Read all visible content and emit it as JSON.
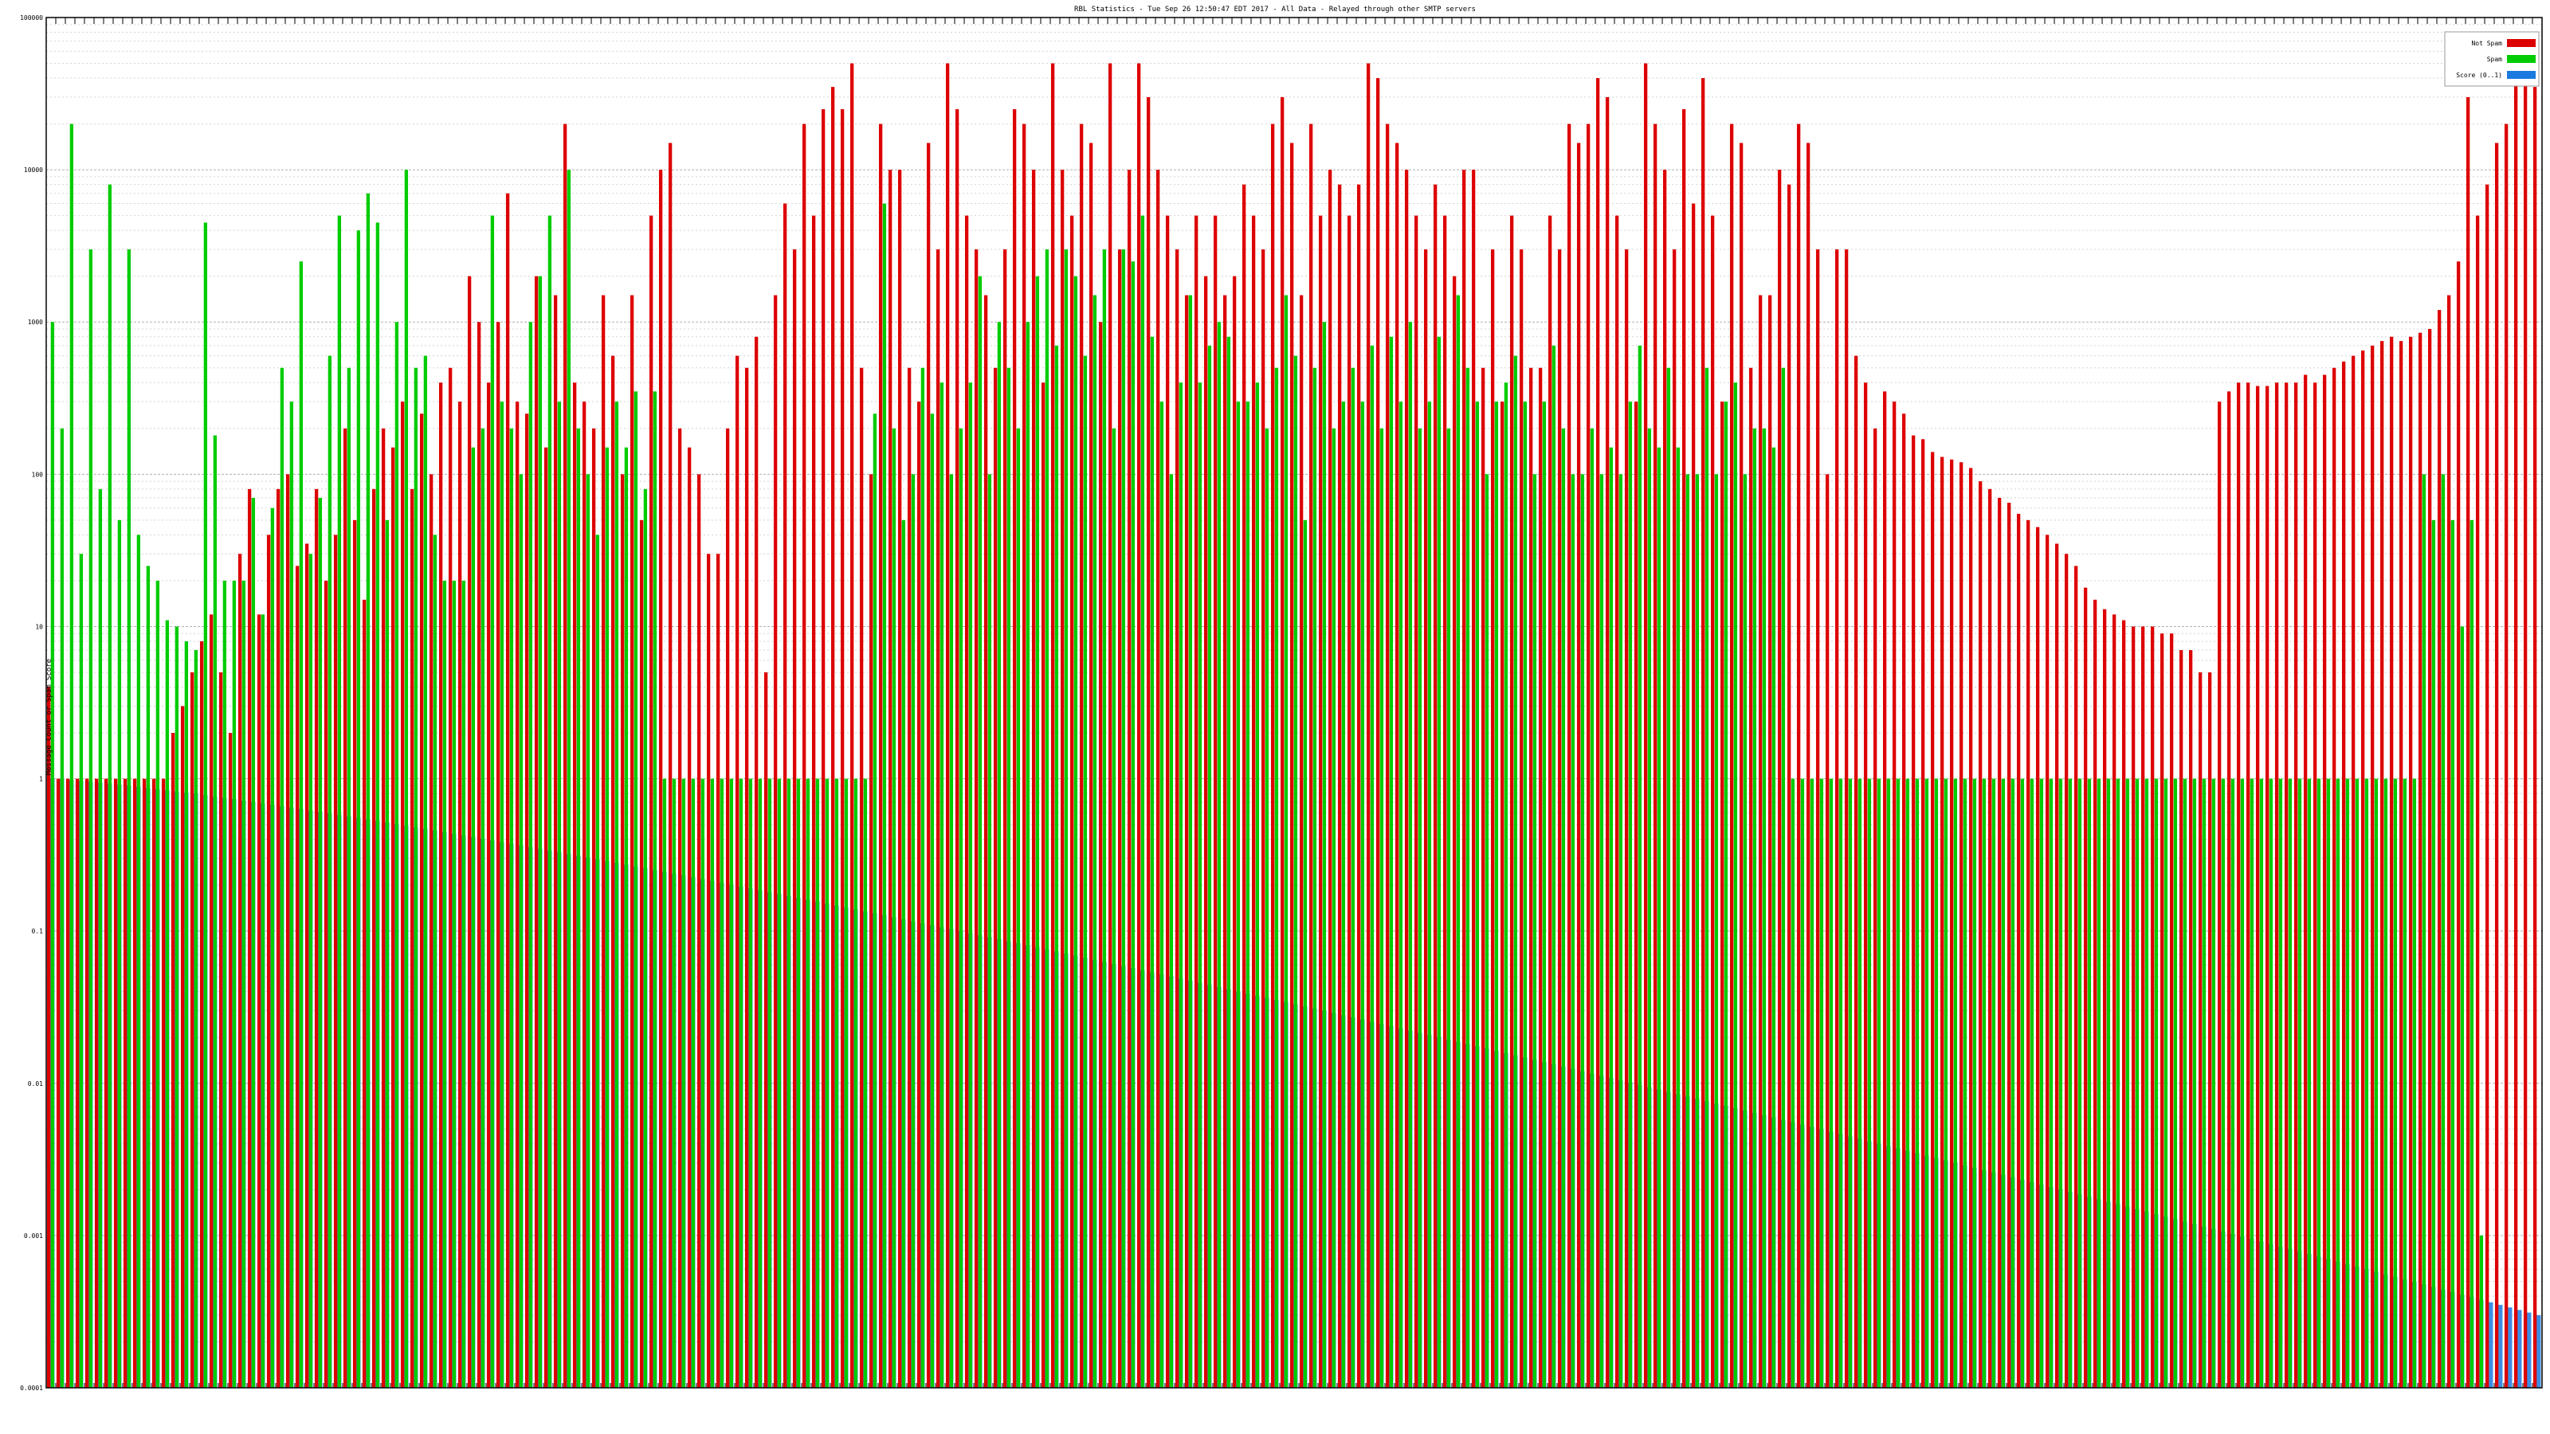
{
  "chart_data": {
    "type": "bar",
    "title": "RBL Statistics - Tue Sep 26 12:50:47 EDT 2017 - All Data - Relayed through other SMTP servers",
    "ylabel": "Message Count or Spam Score",
    "xlabel": "",
    "yscale": "log",
    "ylim": [
      0.0001,
      100000
    ],
    "yticks": [
      "100000",
      "10000",
      "1000",
      "100",
      "10",
      "1",
      "0.1",
      "0.01",
      "0.001",
      "0.0001"
    ],
    "grid": true,
    "legend": {
      "placement": "top-right"
    },
    "series": [
      {
        "name": "Not Spam",
        "color": "#dd0000",
        "values": [
          4,
          1,
          1,
          1,
          1,
          1,
          1,
          1,
          1,
          1,
          1,
          1,
          1,
          2,
          3,
          5,
          8,
          12,
          5,
          2,
          30,
          80,
          12,
          40,
          80,
          100,
          25,
          35,
          80,
          20,
          40,
          200,
          50,
          15,
          80,
          200,
          150,
          300,
          80,
          250,
          100,
          400,
          500,
          300,
          2000,
          1000,
          400,
          1000,
          7000,
          300,
          250,
          2000,
          150,
          1500,
          20000,
          400,
          300,
          200,
          1500,
          600,
          100,
          1500,
          50,
          5000,
          10000,
          15000,
          200,
          150,
          100,
          30,
          30,
          200,
          600,
          500,
          800,
          5,
          1500,
          6000,
          3000,
          20000,
          5000,
          25000,
          35000,
          25000,
          50000,
          500,
          100,
          20000,
          10000,
          10000,
          500,
          300,
          15000,
          3000,
          50000,
          25000,
          5000,
          3000,
          1500,
          500,
          3000,
          25000,
          20000,
          10000,
          400,
          50000,
          10000,
          5000,
          20000,
          15000,
          1000,
          50000,
          3000,
          10000,
          50000,
          30000,
          10000,
          5000,
          3000,
          1500,
          5000,
          2000,
          5000,
          1500,
          2000,
          8000,
          5000,
          3000,
          20000,
          30000,
          15000,
          1500,
          20000,
          5000,
          10000,
          8000,
          5000,
          8000,
          50000,
          40000,
          20000,
          15000,
          10000,
          5000,
          3000,
          8000,
          5000,
          2000,
          10000,
          10000,
          500,
          3000,
          300,
          5000,
          3000,
          500,
          500,
          5000,
          3000,
          20000,
          15000,
          20000,
          40000,
          30000,
          5000,
          3000,
          300,
          50000,
          20000,
          10000,
          3000,
          25000,
          6000,
          40000,
          5000,
          300,
          20000,
          15000,
          500,
          1500,
          1500,
          10000,
          8000,
          20000,
          15000,
          3000,
          100,
          3000,
          3000,
          600,
          400,
          200,
          350,
          300,
          250,
          180,
          170,
          140,
          130,
          125,
          120,
          110,
          90,
          80,
          70,
          65,
          55,
          50,
          45,
          40,
          35,
          30,
          25,
          18,
          15,
          13,
          12,
          11,
          10,
          10,
          10,
          9,
          9,
          7,
          7,
          5,
          5,
          300,
          350,
          400,
          400,
          380,
          380,
          400,
          400,
          400,
          450,
          400,
          450,
          500,
          550,
          600,
          650,
          700,
          750,
          800,
          750,
          800,
          850,
          900,
          1200,
          1500,
          2500,
          30000,
          5000,
          8000,
          15000,
          20000,
          60000,
          80000,
          35000
        ]
      },
      {
        "name": "Spam",
        "color": "#00cc00",
        "values": [
          1000,
          200,
          20000,
          30,
          3000,
          80,
          8000,
          50,
          3000,
          40,
          25,
          20,
          11,
          10,
          8,
          7,
          4500,
          180,
          20,
          20,
          20,
          70,
          12,
          60,
          500,
          300,
          2500,
          30,
          70,
          600,
          5000,
          500,
          4000,
          7000,
          4500,
          50,
          1000,
          10000,
          500,
          600,
          40,
          20,
          20,
          20,
          150,
          200,
          5000,
          300,
          200,
          100,
          1000,
          2000,
          5000,
          300,
          10000,
          200,
          100,
          40,
          150,
          300,
          150,
          350,
          80,
          350,
          1,
          1,
          1,
          1,
          1,
          1,
          1,
          1,
          1,
          1,
          1,
          1,
          1,
          1,
          1,
          1,
          1,
          1,
          1,
          1,
          1,
          1,
          250,
          6000,
          200,
          50,
          100,
          500,
          250,
          400,
          100,
          200,
          400,
          2000,
          100,
          1000,
          500,
          200,
          1000,
          2000,
          3000,
          700,
          3000,
          2000,
          600,
          1500,
          3000,
          200,
          3000,
          2500,
          5000,
          800,
          300,
          100,
          400,
          1500,
          400,
          700,
          1000,
          800,
          300,
          300,
          400,
          200,
          500,
          1500,
          600,
          50,
          500,
          1000,
          200,
          300,
          500,
          300,
          700,
          200,
          800,
          300,
          1000,
          200,
          300,
          800,
          200,
          1500,
          500,
          300,
          100,
          300,
          400,
          600,
          300,
          100,
          300,
          700,
          200,
          100,
          100,
          200,
          100,
          150,
          100,
          300,
          700,
          200,
          150,
          500,
          150,
          100,
          100,
          500,
          100,
          300,
          400,
          100,
          200,
          200,
          150,
          500,
          1,
          1,
          1,
          1,
          1,
          1,
          1,
          1,
          1,
          1,
          1,
          1,
          1,
          1,
          1,
          1,
          1,
          1,
          1,
          1,
          1,
          1,
          1,
          1,
          1,
          1,
          1,
          1,
          1,
          1,
          1,
          1,
          1,
          1,
          1,
          1,
          1,
          1,
          1,
          1,
          1,
          1,
          1,
          1,
          1,
          1,
          1,
          1,
          1,
          1,
          1,
          1,
          1,
          1,
          1,
          1,
          1,
          1,
          1,
          1,
          1,
          1,
          1,
          1,
          1,
          1,
          100,
          50,
          100,
          50,
          10,
          50,
          0.001
        ]
      },
      {
        "name": "Score (0..1)",
        "color": "#1a7ae0",
        "values_from": 1.0,
        "values_to": 0.0003
      }
    ]
  }
}
